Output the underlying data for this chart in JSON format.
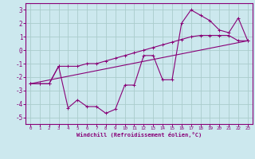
{
  "background_color": "#cce8ee",
  "grid_color": "#aacccc",
  "line_color": "#880077",
  "xlabel": "Windchill (Refroidissement éolien,°C)",
  "xlim": [
    -0.5,
    23.5
  ],
  "ylim": [
    -5.5,
    3.5
  ],
  "yticks": [
    -5,
    -4,
    -3,
    -2,
    -1,
    0,
    1,
    2,
    3
  ],
  "xticks": [
    0,
    1,
    2,
    3,
    4,
    5,
    6,
    7,
    8,
    9,
    10,
    11,
    12,
    13,
    14,
    15,
    16,
    17,
    18,
    19,
    20,
    21,
    22,
    23
  ],
  "series0": {
    "x": [
      0,
      1,
      2,
      3,
      4,
      5,
      6,
      7,
      8,
      9,
      10,
      11,
      12,
      13,
      14,
      15,
      16,
      17,
      18,
      19,
      20,
      21,
      22,
      23
    ],
    "y": [
      -2.5,
      -2.5,
      -2.5,
      -1.2,
      -1.2,
      -1.2,
      -1.0,
      -1.0,
      -0.8,
      -0.6,
      -0.4,
      -0.2,
      0.0,
      0.2,
      0.4,
      0.6,
      0.8,
      1.0,
      1.1,
      1.1,
      1.1,
      1.1,
      0.7,
      0.7
    ]
  },
  "series1": {
    "x": [
      0,
      1,
      2,
      3,
      4,
      5,
      6,
      7,
      8,
      9,
      10,
      11,
      12,
      13,
      14,
      15,
      16,
      17,
      18,
      19,
      20,
      21,
      22,
      23
    ],
    "y": [
      -2.5,
      -2.5,
      -2.5,
      -1.2,
      -4.3,
      -3.7,
      -4.2,
      -4.2,
      -4.7,
      -4.4,
      -2.6,
      -2.6,
      -0.4,
      -0.4,
      -2.2,
      -2.2,
      2.0,
      3.0,
      2.6,
      2.2,
      1.5,
      1.3,
      2.4,
      0.7
    ]
  },
  "series2": {
    "x": [
      0,
      23
    ],
    "y": [
      -2.5,
      0.7
    ]
  }
}
